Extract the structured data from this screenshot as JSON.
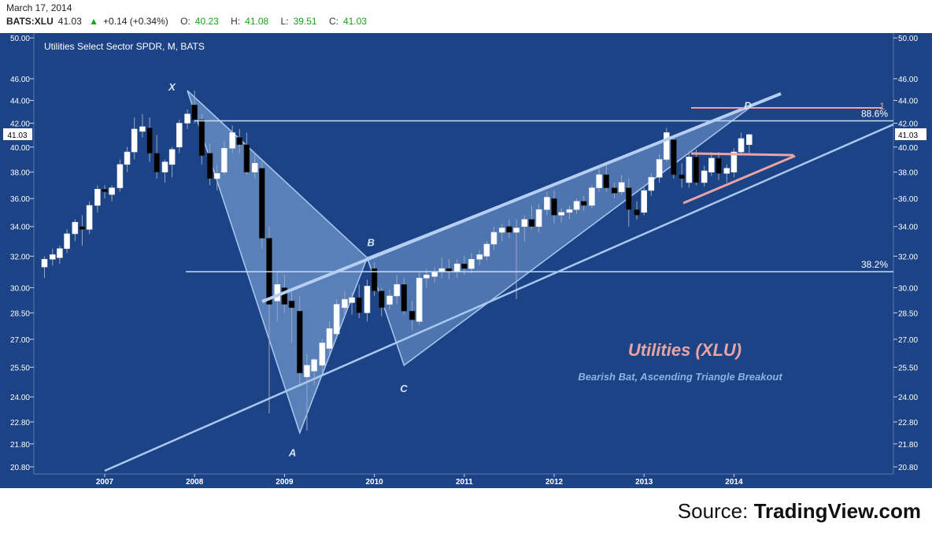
{
  "header": {
    "date": "March 17, 2014",
    "symbol": "BATS:XLU",
    "last": "41.03",
    "change": "+0.14 (+0.34%)",
    "open_label": "O:",
    "open": "40.23",
    "high_label": "H:",
    "high": "41.08",
    "low_label": "L:",
    "low": "39.51",
    "close_label": "C:",
    "close": "41.03"
  },
  "source": {
    "prefix": "Source: ",
    "name": "TradingView.com"
  },
  "colors": {
    "background": "#1d4387",
    "up_candle": "#ffffff",
    "down_candle": "#000000",
    "pattern_fill": "#8db3e2",
    "pattern_line": "#a9c8f0",
    "level_line": "#c9dcf5",
    "pink": "#e8a3a3"
  },
  "chart_data": {
    "type": "candlestick",
    "title": "Utilities Select Sector SPDR, M, BATS",
    "scale": "log",
    "ylim": [
      20.5,
      50.5
    ],
    "y_ticks": [
      "20.80",
      "21.80",
      "22.80",
      "24.00",
      "25.50",
      "27.00",
      "28.50",
      "30.00",
      "32.00",
      "34.00",
      "36.00",
      "38.00",
      "40.00",
      "42.00",
      "44.00",
      "46.00",
      "50.00"
    ],
    "x_ticks": [
      "2007",
      "2008",
      "2009",
      "2010",
      "2011",
      "2012",
      "2013",
      "2014"
    ],
    "last_price_label": "41.03",
    "annotation_title": "Utilities (XLU)",
    "annotation_subtitle": "Bearish Bat, Ascending Triangle Breakout",
    "pattern_points": [
      {
        "label": "X",
        "t": 2007.92,
        "price": 44.9
      },
      {
        "label": "A",
        "t": 2009.17,
        "price": 22.3
      },
      {
        "label": "B",
        "t": 2009.92,
        "price": 31.9
      },
      {
        "label": "C",
        "t": 2010.33,
        "price": 25.6
      },
      {
        "label": "D",
        "t": 2014.2,
        "price": 43.5
      }
    ],
    "levels": [
      {
        "label": "88.6%",
        "price": 42.2
      },
      {
        "label": "38.2%",
        "price": 31.0
      }
    ],
    "d_marker_label": "1",
    "candles": [
      {
        "t": 2006.33,
        "o": 31.3,
        "h": 32.0,
        "l": 30.6,
        "c": 31.8
      },
      {
        "t": 2006.42,
        "o": 31.8,
        "h": 32.5,
        "l": 31.4,
        "c": 32.1
      },
      {
        "t": 2006.5,
        "o": 31.9,
        "h": 32.7,
        "l": 31.5,
        "c": 32.5
      },
      {
        "t": 2006.58,
        "o": 32.5,
        "h": 33.8,
        "l": 32.2,
        "c": 33.5
      },
      {
        "t": 2006.67,
        "o": 33.5,
        "h": 34.5,
        "l": 33.0,
        "c": 34.3
      },
      {
        "t": 2006.75,
        "o": 34.0,
        "h": 34.8,
        "l": 32.7,
        "c": 33.8
      },
      {
        "t": 2006.83,
        "o": 33.8,
        "h": 35.8,
        "l": 33.5,
        "c": 35.5
      },
      {
        "t": 2006.92,
        "o": 35.5,
        "h": 37.0,
        "l": 35.0,
        "c": 36.7
      },
      {
        "t": 2007.0,
        "o": 36.7,
        "h": 37.0,
        "l": 36.0,
        "c": 36.5
      },
      {
        "t": 2007.08,
        "o": 36.3,
        "h": 37.0,
        "l": 35.8,
        "c": 36.8
      },
      {
        "t": 2007.17,
        "o": 36.8,
        "h": 39.0,
        "l": 36.5,
        "c": 38.6
      },
      {
        "t": 2007.25,
        "o": 38.6,
        "h": 40.0,
        "l": 38.0,
        "c": 39.6
      },
      {
        "t": 2007.33,
        "o": 39.6,
        "h": 42.5,
        "l": 39.0,
        "c": 41.5
      },
      {
        "t": 2007.42,
        "o": 41.3,
        "h": 42.8,
        "l": 40.8,
        "c": 41.7
      },
      {
        "t": 2007.5,
        "o": 41.6,
        "h": 42.5,
        "l": 38.8,
        "c": 39.5
      },
      {
        "t": 2007.58,
        "o": 39.5,
        "h": 41.0,
        "l": 37.5,
        "c": 38.0
      },
      {
        "t": 2007.67,
        "o": 38.0,
        "h": 39.0,
        "l": 37.2,
        "c": 38.8
      },
      {
        "t": 2007.75,
        "o": 38.6,
        "h": 40.0,
        "l": 37.6,
        "c": 39.8
      },
      {
        "t": 2007.83,
        "o": 40.0,
        "h": 42.3,
        "l": 39.5,
        "c": 42.0
      },
      {
        "t": 2007.92,
        "o": 42.0,
        "h": 43.2,
        "l": 41.5,
        "c": 42.8
      },
      {
        "t": 2008.0,
        "o": 43.6,
        "h": 44.9,
        "l": 42.0,
        "c": 42.3
      },
      {
        "t": 2008.08,
        "o": 42.3,
        "h": 42.8,
        "l": 38.6,
        "c": 39.3
      },
      {
        "t": 2008.17,
        "o": 39.5,
        "h": 40.3,
        "l": 37.0,
        "c": 37.5
      },
      {
        "t": 2008.25,
        "o": 37.5,
        "h": 38.6,
        "l": 36.6,
        "c": 37.9
      },
      {
        "t": 2008.33,
        "o": 38.0,
        "h": 40.5,
        "l": 37.8,
        "c": 39.9
      },
      {
        "t": 2008.42,
        "o": 39.9,
        "h": 41.8,
        "l": 39.5,
        "c": 41.2
      },
      {
        "t": 2008.5,
        "o": 40.8,
        "h": 41.5,
        "l": 39.5,
        "c": 40.2
      },
      {
        "t": 2008.58,
        "o": 40.2,
        "h": 41.2,
        "l": 37.8,
        "c": 38.0
      },
      {
        "t": 2008.67,
        "o": 38.0,
        "h": 39.5,
        "l": 37.5,
        "c": 38.7
      },
      {
        "t": 2008.75,
        "o": 38.3,
        "h": 38.8,
        "l": 32.5,
        "c": 33.2
      },
      {
        "t": 2008.83,
        "o": 33.2,
        "h": 34.0,
        "l": 23.2,
        "c": 29.0
      },
      {
        "t": 2008.92,
        "o": 29.2,
        "h": 31.0,
        "l": 28.0,
        "c": 30.2
      },
      {
        "t": 2009.0,
        "o": 30.0,
        "h": 30.8,
        "l": 28.5,
        "c": 29.0
      },
      {
        "t": 2009.08,
        "o": 29.2,
        "h": 30.0,
        "l": 26.8,
        "c": 28.8
      },
      {
        "t": 2009.17,
        "o": 28.6,
        "h": 29.5,
        "l": 24.5,
        "c": 25.2
      },
      {
        "t": 2009.25,
        "o": 25.0,
        "h": 26.2,
        "l": 22.4,
        "c": 25.6
      },
      {
        "t": 2009.33,
        "o": 25.3,
        "h": 26.0,
        "l": 24.6,
        "c": 25.9
      },
      {
        "t": 2009.42,
        "o": 25.6,
        "h": 27.0,
        "l": 25.3,
        "c": 26.8
      },
      {
        "t": 2009.5,
        "o": 26.5,
        "h": 28.0,
        "l": 26.2,
        "c": 27.6
      },
      {
        "t": 2009.58,
        "o": 27.3,
        "h": 29.3,
        "l": 27.0,
        "c": 29.0
      },
      {
        "t": 2009.67,
        "o": 28.8,
        "h": 29.8,
        "l": 28.3,
        "c": 29.3
      },
      {
        "t": 2009.75,
        "o": 29.1,
        "h": 29.7,
        "l": 28.4,
        "c": 29.4
      },
      {
        "t": 2009.83,
        "o": 29.4,
        "h": 30.2,
        "l": 28.2,
        "c": 28.5
      },
      {
        "t": 2009.92,
        "o": 28.5,
        "h": 30.5,
        "l": 28.0,
        "c": 30.1
      },
      {
        "t": 2010.0,
        "o": 31.2,
        "h": 31.6,
        "l": 29.5,
        "c": 29.8
      },
      {
        "t": 2010.08,
        "o": 29.8,
        "h": 30.0,
        "l": 28.3,
        "c": 28.8
      },
      {
        "t": 2010.17,
        "o": 29.0,
        "h": 29.9,
        "l": 28.7,
        "c": 29.5
      },
      {
        "t": 2010.25,
        "o": 29.5,
        "h": 30.8,
        "l": 29.0,
        "c": 30.2
      },
      {
        "t": 2010.33,
        "o": 30.2,
        "h": 30.6,
        "l": 28.4,
        "c": 28.6
      },
      {
        "t": 2010.42,
        "o": 28.6,
        "h": 29.2,
        "l": 27.5,
        "c": 28.1
      },
      {
        "t": 2010.5,
        "o": 28.0,
        "h": 31.0,
        "l": 27.8,
        "c": 30.6
      },
      {
        "t": 2010.58,
        "o": 30.6,
        "h": 31.2,
        "l": 30.0,
        "c": 30.8
      },
      {
        "t": 2010.67,
        "o": 30.7,
        "h": 31.3,
        "l": 30.3,
        "c": 31.0
      },
      {
        "t": 2010.75,
        "o": 31.0,
        "h": 31.9,
        "l": 30.6,
        "c": 31.2
      },
      {
        "t": 2010.83,
        "o": 31.2,
        "h": 31.8,
        "l": 30.5,
        "c": 31.0
      },
      {
        "t": 2010.92,
        "o": 31.0,
        "h": 31.8,
        "l": 30.6,
        "c": 31.5
      },
      {
        "t": 2011.0,
        "o": 31.5,
        "h": 32.0,
        "l": 30.8,
        "c": 31.2
      },
      {
        "t": 2011.08,
        "o": 31.2,
        "h": 32.2,
        "l": 30.9,
        "c": 31.8
      },
      {
        "t": 2011.17,
        "o": 31.8,
        "h": 32.4,
        "l": 31.4,
        "c": 32.1
      },
      {
        "t": 2011.25,
        "o": 32.0,
        "h": 33.0,
        "l": 31.7,
        "c": 32.8
      },
      {
        "t": 2011.33,
        "o": 32.8,
        "h": 34.0,
        "l": 32.4,
        "c": 33.6
      },
      {
        "t": 2011.42,
        "o": 33.6,
        "h": 34.2,
        "l": 33.0,
        "c": 33.9
      },
      {
        "t": 2011.5,
        "o": 34.0,
        "h": 34.5,
        "l": 33.2,
        "c": 33.6
      },
      {
        "t": 2011.58,
        "o": 33.6,
        "h": 34.5,
        "l": 29.3,
        "c": 33.9
      },
      {
        "t": 2011.67,
        "o": 34.0,
        "h": 34.8,
        "l": 33.0,
        "c": 34.5
      },
      {
        "t": 2011.75,
        "o": 34.5,
        "h": 35.5,
        "l": 33.8,
        "c": 34.0
      },
      {
        "t": 2011.83,
        "o": 34.0,
        "h": 35.6,
        "l": 33.6,
        "c": 35.2
      },
      {
        "t": 2011.92,
        "o": 35.2,
        "h": 36.5,
        "l": 34.8,
        "c": 36.1
      },
      {
        "t": 2012.0,
        "o": 36.0,
        "h": 36.6,
        "l": 34.2,
        "c": 34.8
      },
      {
        "t": 2012.08,
        "o": 34.8,
        "h": 35.3,
        "l": 34.3,
        "c": 35.0
      },
      {
        "t": 2012.17,
        "o": 35.0,
        "h": 35.5,
        "l": 34.5,
        "c": 35.2
      },
      {
        "t": 2012.25,
        "o": 35.2,
        "h": 36.0,
        "l": 34.9,
        "c": 35.8
      },
      {
        "t": 2012.33,
        "o": 35.8,
        "h": 36.2,
        "l": 35.1,
        "c": 35.5
      },
      {
        "t": 2012.42,
        "o": 35.5,
        "h": 37.0,
        "l": 35.3,
        "c": 36.8
      },
      {
        "t": 2012.5,
        "o": 36.8,
        "h": 38.3,
        "l": 36.5,
        "c": 37.8
      },
      {
        "t": 2012.58,
        "o": 37.8,
        "h": 38.8,
        "l": 36.5,
        "c": 36.8
      },
      {
        "t": 2012.67,
        "o": 36.8,
        "h": 37.2,
        "l": 36.0,
        "c": 36.4
      },
      {
        "t": 2012.75,
        "o": 36.5,
        "h": 37.8,
        "l": 36.3,
        "c": 37.2
      },
      {
        "t": 2012.83,
        "o": 36.8,
        "h": 37.5,
        "l": 34.0,
        "c": 35.2
      },
      {
        "t": 2012.92,
        "o": 35.2,
        "h": 35.8,
        "l": 34.5,
        "c": 34.8
      },
      {
        "t": 2013.0,
        "o": 35.0,
        "h": 37.0,
        "l": 34.8,
        "c": 36.6
      },
      {
        "t": 2013.08,
        "o": 36.6,
        "h": 37.9,
        "l": 36.2,
        "c": 37.6
      },
      {
        "t": 2013.17,
        "o": 37.6,
        "h": 39.4,
        "l": 37.2,
        "c": 39.0
      },
      {
        "t": 2013.25,
        "o": 39.0,
        "h": 41.6,
        "l": 38.8,
        "c": 41.2
      },
      {
        "t": 2013.33,
        "o": 40.6,
        "h": 41.0,
        "l": 37.5,
        "c": 37.8
      },
      {
        "t": 2013.42,
        "o": 37.8,
        "h": 38.7,
        "l": 36.8,
        "c": 37.5
      },
      {
        "t": 2013.5,
        "o": 37.2,
        "h": 39.7,
        "l": 36.8,
        "c": 39.2
      },
      {
        "t": 2013.58,
        "o": 39.2,
        "h": 39.8,
        "l": 37.0,
        "c": 37.2
      },
      {
        "t": 2013.67,
        "o": 37.2,
        "h": 38.5,
        "l": 36.9,
        "c": 38.1
      },
      {
        "t": 2013.75,
        "o": 38.0,
        "h": 39.6,
        "l": 37.7,
        "c": 39.1
      },
      {
        "t": 2013.83,
        "o": 39.1,
        "h": 39.6,
        "l": 37.4,
        "c": 37.9
      },
      {
        "t": 2013.92,
        "o": 37.9,
        "h": 38.6,
        "l": 37.2,
        "c": 38.3
      },
      {
        "t": 2014.0,
        "o": 38.0,
        "h": 39.9,
        "l": 37.6,
        "c": 39.6
      },
      {
        "t": 2014.08,
        "o": 39.6,
        "h": 41.2,
        "l": 39.3,
        "c": 40.7
      },
      {
        "t": 2014.17,
        "o": 40.2,
        "h": 41.1,
        "l": 39.5,
        "c": 41.03
      }
    ]
  }
}
